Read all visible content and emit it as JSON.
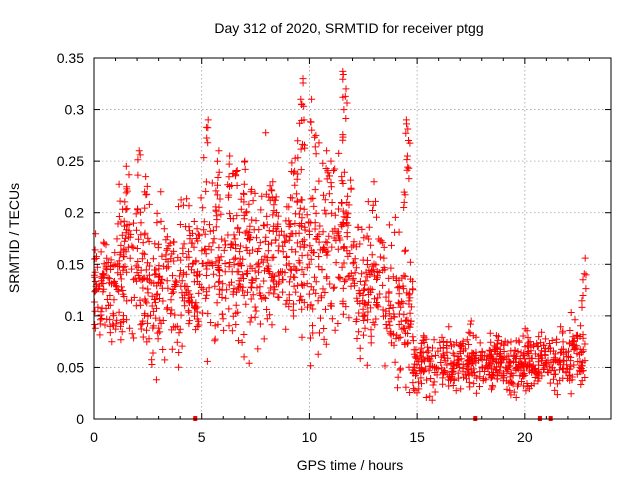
{
  "chart_data": {
    "type": "scatter",
    "title": "Day 312 of 2020, SRMTID for receiver ptgg",
    "xlabel": "GPS time / hours",
    "ylabel": "SRMTID / TECUs",
    "xlim": [
      0,
      24
    ],
    "ylim": [
      0,
      0.35
    ],
    "xticks": [
      0,
      5,
      10,
      15,
      20
    ],
    "xtick_labels": [
      "0",
      "5",
      "10",
      "15",
      "20"
    ],
    "yticks": [
      0,
      0.05,
      0.1,
      0.15,
      0.2,
      0.25,
      0.3,
      0.35
    ],
    "ytick_labels": [
      "0",
      "0.05",
      "0.1",
      "0.15",
      "0.2",
      "0.25",
      "0.3",
      "0.35"
    ],
    "grid": true,
    "marker": "plus",
    "color": "#ff0000",
    "series": [
      {
        "name": "SRMTID",
        "segments": [
          {
            "x_start": 0.0,
            "x_end": 1.0,
            "count": 80,
            "mean": 0.125,
            "spread": 0.025
          },
          {
            "x_start": 1.0,
            "x_end": 2.5,
            "count": 130,
            "mean": 0.15,
            "spread": 0.04
          },
          {
            "x_start": 2.5,
            "x_end": 5.0,
            "count": 200,
            "mean": 0.135,
            "spread": 0.035
          },
          {
            "x_start": 5.0,
            "x_end": 9.0,
            "count": 320,
            "mean": 0.155,
            "spread": 0.04
          },
          {
            "x_start": 9.0,
            "x_end": 12.0,
            "count": 240,
            "mean": 0.165,
            "spread": 0.045
          },
          {
            "x_start": 12.0,
            "x_end": 13.5,
            "count": 110,
            "mean": 0.13,
            "spread": 0.035
          },
          {
            "x_start": 13.5,
            "x_end": 14.8,
            "count": 100,
            "mean": 0.11,
            "spread": 0.035
          },
          {
            "x_start": 14.8,
            "x_end": 21.5,
            "count": 500,
            "mean": 0.055,
            "spread": 0.014
          },
          {
            "x_start": 21.5,
            "x_end": 22.8,
            "count": 90,
            "mean": 0.06,
            "spread": 0.016
          }
        ],
        "peaks": [
          {
            "x": 1.5,
            "y": 0.245
          },
          {
            "x": 2.1,
            "y": 0.26
          },
          {
            "x": 2.4,
            "y": 0.235
          },
          {
            "x": 5.3,
            "y": 0.29
          },
          {
            "x": 5.8,
            "y": 0.26
          },
          {
            "x": 6.3,
            "y": 0.255
          },
          {
            "x": 6.6,
            "y": 0.24
          },
          {
            "x": 7.0,
            "y": 0.25
          },
          {
            "x": 8.3,
            "y": 0.23
          },
          {
            "x": 9.6,
            "y": 0.31
          },
          {
            "x": 9.7,
            "y": 0.33
          },
          {
            "x": 9.75,
            "y": 0.29
          },
          {
            "x": 10.1,
            "y": 0.31
          },
          {
            "x": 10.3,
            "y": 0.275
          },
          {
            "x": 10.8,
            "y": 0.26
          },
          {
            "x": 11.0,
            "y": 0.25
          },
          {
            "x": 11.5,
            "y": 0.235
          },
          {
            "x": 11.55,
            "y": 0.337
          },
          {
            "x": 11.6,
            "y": 0.3
          },
          {
            "x": 11.7,
            "y": 0.32
          },
          {
            "x": 13.0,
            "y": 0.23
          },
          {
            "x": 14.5,
            "y": 0.29
          },
          {
            "x": 14.6,
            "y": 0.27
          },
          {
            "x": 14.55,
            "y": 0.255
          },
          {
            "x": 14.4,
            "y": 0.22
          },
          {
            "x": 22.8,
            "y": 0.156
          },
          {
            "x": 22.7,
            "y": 0.135
          }
        ],
        "zero_points": [
          4.7,
          17.7,
          20.7,
          21.2
        ]
      }
    ]
  }
}
